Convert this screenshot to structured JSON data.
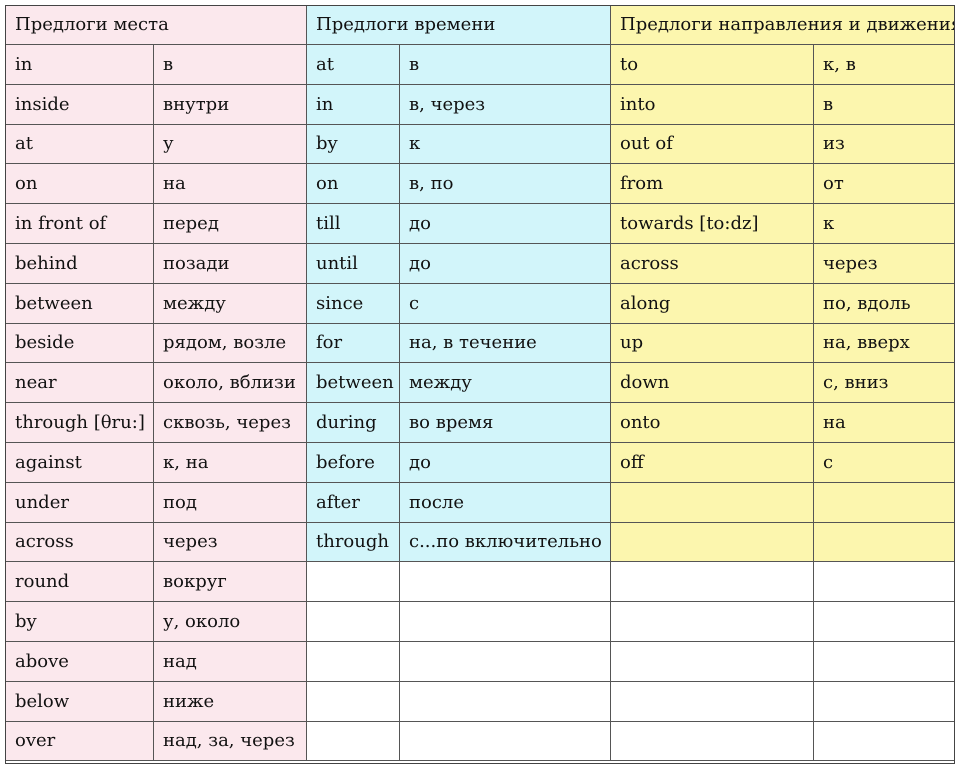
{
  "colors": {
    "place": "#fbe8ed",
    "time": "#d2f5fa",
    "direction": "#fcf6ae",
    "empty": "#ffffff"
  },
  "headers": {
    "place": "Предлоги места",
    "time": "Предлоги времени",
    "direction": "Предлоги направления и движения"
  },
  "place": [
    {
      "en": "in",
      "ru": "в"
    },
    {
      "en": "inside",
      "ru": "внутри"
    },
    {
      "en": "at",
      "ru": "у"
    },
    {
      "en": "on",
      "ru": "на"
    },
    {
      "en": "in front of",
      "ru": "перед"
    },
    {
      "en": "behind",
      "ru": "позади"
    },
    {
      "en": "between",
      "ru": "между"
    },
    {
      "en": "beside",
      "ru": "рядом, возле"
    },
    {
      "en": "near",
      "ru": "около, вблизи"
    },
    {
      "en": "through [θru:]",
      "ru": "сквозь, через"
    },
    {
      "en": "against",
      "ru": "к, на"
    },
    {
      "en": "under",
      "ru": "под"
    },
    {
      "en": "across",
      "ru": "через"
    },
    {
      "en": "round",
      "ru": "вокруг"
    },
    {
      "en": "by",
      "ru": "у, около"
    },
    {
      "en": "above",
      "ru": "над"
    },
    {
      "en": "below",
      "ru": "ниже"
    },
    {
      "en": "over",
      "ru": "над, за, через"
    }
  ],
  "time": [
    {
      "en": "at",
      "ru": "в"
    },
    {
      "en": "in",
      "ru": "в, через"
    },
    {
      "en": "by",
      "ru": "к"
    },
    {
      "en": "on",
      "ru": "в, по"
    },
    {
      "en": "till",
      "ru": "до"
    },
    {
      "en": "until",
      "ru": "до"
    },
    {
      "en": "since",
      "ru": "с"
    },
    {
      "en": "for",
      "ru": "на, в течение"
    },
    {
      "en": "between",
      "ru": "между"
    },
    {
      "en": "during",
      "ru": "во время"
    },
    {
      "en": "before",
      "ru": "до"
    },
    {
      "en": "after",
      "ru": "после"
    },
    {
      "en": "through",
      "ru": "с...по включительно"
    }
  ],
  "direction": [
    {
      "en": "to",
      "ru": "к, в"
    },
    {
      "en": "into",
      "ru": "в"
    },
    {
      "en": "out of",
      "ru": "из"
    },
    {
      "en": "from",
      "ru": "от"
    },
    {
      "en": "towards [to:dz]",
      "ru": "к"
    },
    {
      "en": "across",
      "ru": "через"
    },
    {
      "en": "along",
      "ru": "по, вдоль"
    },
    {
      "en": "up",
      "ru": "на, вверх"
    },
    {
      "en": "down",
      "ru": "с, вниз"
    },
    {
      "en": "onto",
      "ru": "на"
    },
    {
      "en": "off",
      "ru": "с"
    }
  ],
  "direction_filled_rows": 13
}
